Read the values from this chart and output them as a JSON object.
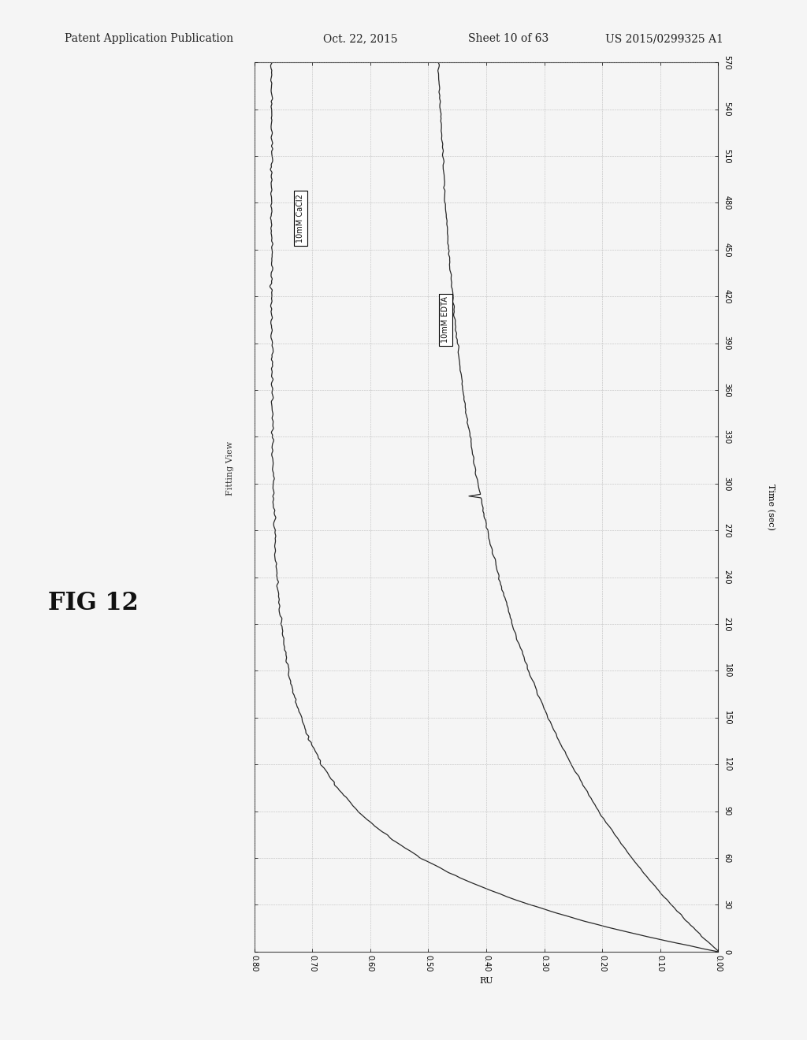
{
  "title": "FIG 12",
  "fitting_view_label": "Fitting View",
  "time_label": "Time (sec)",
  "ru_label": "RU",
  "time_min": 0,
  "time_max": 570,
  "time_ticks": [
    0,
    30,
    60,
    90,
    120,
    150,
    180,
    210,
    240,
    270,
    300,
    330,
    360,
    390,
    420,
    450,
    480,
    510,
    540,
    570
  ],
  "ru_min": 0.0,
  "ru_max": 0.8,
  "ru_ticks": [
    0.0,
    0.1,
    0.2,
    0.3,
    0.4,
    0.5,
    0.6,
    0.7,
    0.8
  ],
  "label_cacl2": "10mM CaCl2",
  "label_edta": "10mM EDTA",
  "bg_color": "#f5f5f5",
  "grid_color": "#999999",
  "line_color": "#111111",
  "header_line1": "Patent Application Publication",
  "header_line2": "Oct. 22, 2015",
  "header_line3": "Sheet 10 of 63",
  "header_line4": "US 2015/0299325 A1",
  "header_fontsize": 10,
  "fig_title_fontsize": 22,
  "axis_tick_fontsize": 7,
  "axis_label_fontsize": 8,
  "legend_fontsize": 7,
  "cacl2_label_ru": 0.72,
  "cacl2_label_t": 470,
  "edta_label_ru": 0.47,
  "edta_label_t": 405,
  "cacl2_tau": 55,
  "cacl2_max_ru": 0.77,
  "edta_tau": 170,
  "edta_max_ru": 0.5,
  "noise_seed": 42
}
